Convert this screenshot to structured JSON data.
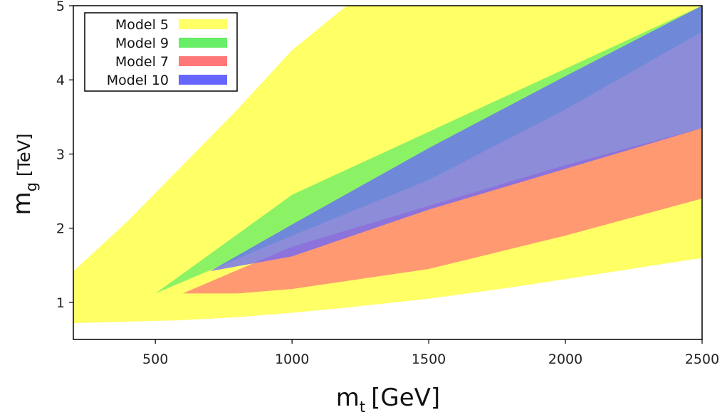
{
  "chart_data": {
    "type": "area",
    "xlabel": {
      "base": "m",
      "sub": "t",
      "unit": "[GeV]"
    },
    "ylabel": {
      "base": "m",
      "sub": "g",
      "unit": "[TeV]"
    },
    "xlim": [
      200,
      2500
    ],
    "ylim": [
      0.5,
      5
    ],
    "xticks": [
      500,
      1000,
      1500,
      2000,
      2500
    ],
    "yticks": [
      1,
      2,
      3,
      4,
      5
    ],
    "grid": false,
    "legend_position": "top-left",
    "series": [
      {
        "name": "Model 5",
        "color": "#ffff66",
        "upper": [
          [
            200,
            1.42
          ],
          [
            400,
            2.1
          ],
          [
            600,
            2.85
          ],
          [
            800,
            3.6
          ],
          [
            1000,
            4.4
          ],
          [
            1200,
            5.0
          ],
          [
            2500,
            5.0
          ]
        ],
        "lower": [
          [
            200,
            0.72
          ],
          [
            400,
            0.74
          ],
          [
            600,
            0.76
          ],
          [
            800,
            0.8
          ],
          [
            1000,
            0.86
          ],
          [
            1200,
            0.93
          ],
          [
            1500,
            1.05
          ],
          [
            1800,
            1.2
          ],
          [
            2100,
            1.37
          ],
          [
            2500,
            1.6
          ]
        ]
      },
      {
        "name": "Model 9",
        "color": "#66ee66",
        "upper": [
          [
            500,
            1.12
          ],
          [
            1000,
            2.45
          ],
          [
            1500,
            3.3
          ],
          [
            2000,
            4.15
          ],
          [
            2500,
            5.0
          ]
        ],
        "lower": [
          [
            500,
            1.12
          ],
          [
            1000,
            1.9
          ],
          [
            1500,
            2.65
          ],
          [
            2000,
            3.6
          ],
          [
            2500,
            4.65
          ]
        ]
      },
      {
        "name": "Model 7",
        "color": "#ff7777",
        "upper": [
          [
            600,
            1.12
          ],
          [
            1000,
            1.75
          ],
          [
            1500,
            2.3
          ],
          [
            2000,
            2.85
          ],
          [
            2500,
            3.35
          ]
        ],
        "lower": [
          [
            600,
            1.12
          ],
          [
            800,
            1.12
          ],
          [
            1000,
            1.18
          ],
          [
            1500,
            1.45
          ],
          [
            2000,
            1.9
          ],
          [
            2500,
            2.4
          ]
        ]
      },
      {
        "name": "Model 10",
        "color": "#6666ff",
        "upper": [
          [
            700,
            1.42
          ],
          [
            1000,
            2.05
          ],
          [
            1500,
            3.08
          ],
          [
            2000,
            4.05
          ],
          [
            2500,
            5.0
          ]
        ],
        "lower": [
          [
            700,
            1.42
          ],
          [
            1000,
            1.62
          ],
          [
            1500,
            2.25
          ],
          [
            2000,
            2.8
          ],
          [
            2500,
            3.35
          ]
        ]
      }
    ]
  }
}
